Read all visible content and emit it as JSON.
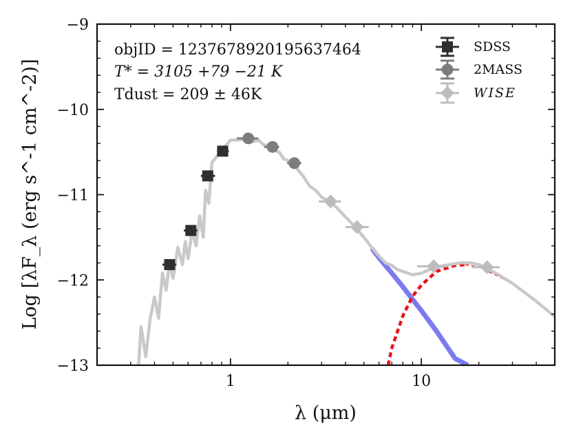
{
  "chart_data": {
    "type": "scatter",
    "x_scale": "log",
    "xlim": [
      0.2,
      50
    ],
    "ylim": [
      -13,
      -9
    ],
    "xlabel": "λ (μm)",
    "ylabel": "Log [λF_λ (erg s^-1 cm^-2)]",
    "x_ticks": [
      {
        "value": 1,
        "label": "1"
      },
      {
        "value": 10,
        "label": "10"
      }
    ],
    "y_ticks": [
      {
        "value": -13,
        "label": "−13"
      },
      {
        "value": -12,
        "label": "−12"
      },
      {
        "value": -11,
        "label": "−11"
      },
      {
        "value": -10,
        "label": "−10"
      },
      {
        "value": -9,
        "label": "−9"
      }
    ],
    "annotations": {
      "objid": "objID = 1237678920195637464",
      "tstar": "T* = 3105 +79 −21 K",
      "tdust": "Tdust = 209 ± 46K"
    },
    "legend": {
      "placement": "top-right",
      "entries": [
        {
          "name": "SDSS",
          "marker": "square",
          "color": "#2f2f2f"
        },
        {
          "name": "2MASS",
          "marker": "circle",
          "color": "#7d7d7d"
        },
        {
          "name": "WISE",
          "marker": "diamond",
          "color": "#bdbdbd"
        }
      ]
    },
    "series": [
      {
        "name": "SDSS",
        "marker": "square",
        "color": "#2f2f2f",
        "points": [
          {
            "x": 0.48,
            "y": -11.82,
            "xerr": [
              0.44,
              0.52
            ]
          },
          {
            "x": 0.62,
            "y": -11.42,
            "xerr": [
              0.57,
              0.67
            ]
          },
          {
            "x": 0.76,
            "y": -10.78,
            "xerr": [
              0.7,
              0.83
            ]
          },
          {
            "x": 0.91,
            "y": -10.49,
            "xerr": [
              0.85,
              0.98
            ]
          }
        ]
      },
      {
        "name": "2MASS",
        "marker": "circle",
        "color": "#7d7d7d",
        "points": [
          {
            "x": 1.24,
            "y": -10.34,
            "xerr": [
              1.08,
              1.4
            ]
          },
          {
            "x": 1.66,
            "y": -10.44,
            "xerr": [
              1.5,
              1.8
            ]
          },
          {
            "x": 2.16,
            "y": -10.63,
            "xerr": [
              1.98,
              2.35
            ]
          }
        ]
      },
      {
        "name": "WISE",
        "marker": "diamond",
        "color": "#bdbdbd",
        "points": [
          {
            "x": 3.35,
            "y": -11.08,
            "xerr": [
              2.9,
              3.8
            ]
          },
          {
            "x": 4.6,
            "y": -11.38,
            "xerr": [
              4.0,
              5.3
            ]
          },
          {
            "x": 11.6,
            "y": -11.84,
            "xerr": [
              9.5,
              13.7
            ]
          },
          {
            "x": 22.1,
            "y": -11.85,
            "xerr": [
              18.5,
              25.7
            ]
          }
        ]
      }
    ],
    "model_curves": [
      {
        "name": "stellar photosphere",
        "style": "solid",
        "color": "#7b7bef",
        "points": [
          [
            5.5,
            -11.63
          ],
          [
            6,
            -11.74
          ],
          [
            7,
            -11.92
          ],
          [
            8,
            -12.08
          ],
          [
            9,
            -12.23
          ],
          [
            10,
            -12.36
          ],
          [
            12,
            -12.6
          ],
          [
            15,
            -12.92
          ],
          [
            17.5,
            -13.0
          ]
        ]
      },
      {
        "name": "dust blackbody",
        "style": "dashed",
        "color": "#e8141b",
        "points": [
          [
            6.7,
            -13.0
          ],
          [
            7,
            -12.8
          ],
          [
            8,
            -12.42
          ],
          [
            9,
            -12.19
          ],
          [
            10,
            -12.06
          ],
          [
            12,
            -11.9
          ],
          [
            15,
            -11.83
          ],
          [
            17,
            -11.82
          ],
          [
            20,
            -11.85
          ],
          [
            25,
            -11.95
          ],
          [
            30,
            -12.05
          ],
          [
            40,
            -12.26
          ],
          [
            50,
            -12.43
          ]
        ]
      },
      {
        "name": "total model",
        "style": "solid",
        "color": "#c9c9c9",
        "points": [
          [
            0.33,
            -13.0
          ],
          [
            0.34,
            -12.55
          ],
          [
            0.36,
            -12.9
          ],
          [
            0.38,
            -12.45
          ],
          [
            0.4,
            -12.2
          ],
          [
            0.42,
            -12.45
          ],
          [
            0.44,
            -11.92
          ],
          [
            0.46,
            -12.12
          ],
          [
            0.48,
            -11.8
          ],
          [
            0.5,
            -11.98
          ],
          [
            0.53,
            -11.62
          ],
          [
            0.56,
            -11.82
          ],
          [
            0.58,
            -11.55
          ],
          [
            0.6,
            -11.75
          ],
          [
            0.63,
            -11.42
          ],
          [
            0.66,
            -11.6
          ],
          [
            0.69,
            -11.25
          ],
          [
            0.72,
            -11.5
          ],
          [
            0.74,
            -10.95
          ],
          [
            0.77,
            -11.1
          ],
          [
            0.8,
            -10.62
          ],
          [
            0.85,
            -10.55
          ],
          [
            0.9,
            -10.46
          ],
          [
            0.95,
            -10.42
          ],
          [
            1.0,
            -10.36
          ],
          [
            1.1,
            -10.36
          ],
          [
            1.2,
            -10.34
          ],
          [
            1.3,
            -10.38
          ],
          [
            1.4,
            -10.36
          ],
          [
            1.5,
            -10.42
          ],
          [
            1.6,
            -10.42
          ],
          [
            1.7,
            -10.48
          ],
          [
            1.8,
            -10.5
          ],
          [
            1.9,
            -10.58
          ],
          [
            2.0,
            -10.6
          ],
          [
            2.2,
            -10.68
          ],
          [
            2.4,
            -10.78
          ],
          [
            2.6,
            -10.9
          ],
          [
            2.8,
            -10.95
          ],
          [
            3.0,
            -11.03
          ],
          [
            3.3,
            -11.08
          ],
          [
            3.6,
            -11.15
          ],
          [
            4.0,
            -11.26
          ],
          [
            4.5,
            -11.38
          ],
          [
            5.0,
            -11.5
          ],
          [
            5.5,
            -11.62
          ],
          [
            6.0,
            -11.72
          ],
          [
            6.5,
            -11.8
          ],
          [
            7.0,
            -11.83
          ],
          [
            7.5,
            -11.88
          ],
          [
            8.0,
            -11.9
          ],
          [
            9.0,
            -11.94
          ],
          [
            10.0,
            -11.92
          ],
          [
            11.0,
            -11.88
          ],
          [
            12.0,
            -11.85
          ],
          [
            14.0,
            -11.82
          ],
          [
            16.0,
            -11.8
          ],
          [
            18.0,
            -11.8
          ],
          [
            20.0,
            -11.82
          ],
          [
            25.0,
            -11.93
          ],
          [
            30.0,
            -12.04
          ],
          [
            40.0,
            -12.25
          ],
          [
            50.0,
            -12.43
          ]
        ]
      }
    ]
  }
}
